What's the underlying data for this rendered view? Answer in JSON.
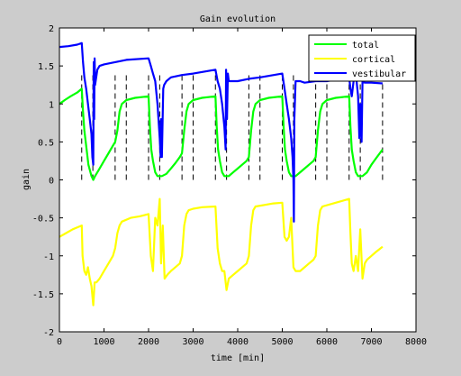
{
  "chart_data": {
    "type": "line",
    "title": "Gain evolution",
    "xlabel": "time [min]",
    "ylabel": "gain",
    "xlim": [
      0,
      8000
    ],
    "ylim": [
      -2,
      2
    ],
    "xticks": [
      0,
      1000,
      2000,
      3000,
      4000,
      5000,
      6000,
      7000,
      8000
    ],
    "yticks": [
      -2,
      -1.5,
      -1,
      -0.5,
      0,
      0.5,
      1,
      1.5,
      2
    ],
    "xtick_labels": [
      "0",
      "1000",
      "2000",
      "3000",
      "4000",
      "5000",
      "6000",
      "7000",
      "8000"
    ],
    "ytick_labels": [
      "-2",
      "-1.5",
      "-1",
      "-0.5",
      "0",
      "0.5",
      "1",
      "1.5",
      "2"
    ],
    "grid": false,
    "legend_position": "top-right",
    "vlines": {
      "color": "#000000",
      "style": "dashed",
      "ymin": 0,
      "ymax": 1.4,
      "x": [
        500,
        750,
        1250,
        1500,
        2000,
        2250,
        2750,
        3000,
        3500,
        3750,
        4250,
        4500,
        5000,
        5250,
        5750,
        6000,
        6500,
        6750,
        7250
      ]
    },
    "series": [
      {
        "name": "total",
        "color": "#00ff00",
        "points": [
          [
            0,
            1.0
          ],
          [
            120,
            1.05
          ],
          [
            250,
            1.1
          ],
          [
            400,
            1.15
          ],
          [
            500,
            1.2
          ],
          [
            530,
            0.9
          ],
          [
            560,
            0.65
          ],
          [
            600,
            0.45
          ],
          [
            650,
            0.2
          ],
          [
            720,
            0.05
          ],
          [
            760,
            0.0
          ],
          [
            800,
            0.05
          ],
          [
            900,
            0.15
          ],
          [
            1000,
            0.25
          ],
          [
            1100,
            0.35
          ],
          [
            1200,
            0.45
          ],
          [
            1250,
            0.5
          ],
          [
            1300,
            0.65
          ],
          [
            1350,
            0.9
          ],
          [
            1400,
            1.0
          ],
          [
            1500,
            1.05
          ],
          [
            1700,
            1.08
          ],
          [
            2000,
            1.1
          ],
          [
            2030,
            0.7
          ],
          [
            2060,
            0.4
          ],
          [
            2100,
            0.25
          ],
          [
            2150,
            0.1
          ],
          [
            2200,
            0.05
          ],
          [
            2250,
            0.05
          ],
          [
            2300,
            0.05
          ],
          [
            2400,
            0.08
          ],
          [
            2500,
            0.15
          ],
          [
            2600,
            0.22
          ],
          [
            2700,
            0.3
          ],
          [
            2750,
            0.35
          ],
          [
            2800,
            0.65
          ],
          [
            2850,
            0.9
          ],
          [
            2900,
            1.0
          ],
          [
            3000,
            1.05
          ],
          [
            3200,
            1.08
          ],
          [
            3500,
            1.1
          ],
          [
            3530,
            0.7
          ],
          [
            3560,
            0.4
          ],
          [
            3600,
            0.25
          ],
          [
            3650,
            0.1
          ],
          [
            3700,
            0.05
          ],
          [
            3750,
            0.05
          ],
          [
            3800,
            0.05
          ],
          [
            3900,
            0.1
          ],
          [
            4000,
            0.15
          ],
          [
            4100,
            0.2
          ],
          [
            4200,
            0.25
          ],
          [
            4250,
            0.3
          ],
          [
            4300,
            0.65
          ],
          [
            4350,
            0.9
          ],
          [
            4400,
            1.0
          ],
          [
            4500,
            1.05
          ],
          [
            4700,
            1.08
          ],
          [
            5000,
            1.1
          ],
          [
            5030,
            0.7
          ],
          [
            5060,
            0.4
          ],
          [
            5100,
            0.25
          ],
          [
            5150,
            0.1
          ],
          [
            5200,
            0.05
          ],
          [
            5250,
            0.05
          ],
          [
            5300,
            0.05
          ],
          [
            5400,
            0.1
          ],
          [
            5500,
            0.15
          ],
          [
            5600,
            0.2
          ],
          [
            5700,
            0.25
          ],
          [
            5750,
            0.3
          ],
          [
            5800,
            0.65
          ],
          [
            5850,
            0.9
          ],
          [
            5900,
            1.0
          ],
          [
            6000,
            1.05
          ],
          [
            6200,
            1.08
          ],
          [
            6500,
            1.1
          ],
          [
            6530,
            0.7
          ],
          [
            6560,
            0.4
          ],
          [
            6600,
            0.25
          ],
          [
            6650,
            0.1
          ],
          [
            6700,
            0.05
          ],
          [
            6750,
            0.05
          ],
          [
            6800,
            0.05
          ],
          [
            6900,
            0.1
          ],
          [
            7000,
            0.2
          ],
          [
            7100,
            0.28
          ],
          [
            7250,
            0.4
          ]
        ]
      },
      {
        "name": "cortical",
        "color": "#ffff00",
        "points": [
          [
            0,
            -0.75
          ],
          [
            150,
            -0.7
          ],
          [
            300,
            -0.65
          ],
          [
            500,
            -0.6
          ],
          [
            520,
            -1.0
          ],
          [
            560,
            -1.2
          ],
          [
            600,
            -1.25
          ],
          [
            640,
            -1.15
          ],
          [
            680,
            -1.3
          ],
          [
            720,
            -1.4
          ],
          [
            760,
            -1.65
          ],
          [
            790,
            -1.35
          ],
          [
            830,
            -1.35
          ],
          [
            900,
            -1.3
          ],
          [
            1000,
            -1.2
          ],
          [
            1100,
            -1.1
          ],
          [
            1200,
            -1.0
          ],
          [
            1250,
            -0.9
          ],
          [
            1300,
            -0.7
          ],
          [
            1350,
            -0.6
          ],
          [
            1400,
            -0.55
          ],
          [
            1600,
            -0.5
          ],
          [
            1800,
            -0.48
          ],
          [
            2000,
            -0.45
          ],
          [
            2050,
            -1.0
          ],
          [
            2100,
            -1.2
          ],
          [
            2150,
            -0.5
          ],
          [
            2200,
            -0.6
          ],
          [
            2250,
            -0.25
          ],
          [
            2280,
            -1.1
          ],
          [
            2320,
            -0.6
          ],
          [
            2360,
            -1.3
          ],
          [
            2420,
            -1.25
          ],
          [
            2500,
            -1.2
          ],
          [
            2600,
            -1.15
          ],
          [
            2700,
            -1.1
          ],
          [
            2750,
            -1.0
          ],
          [
            2800,
            -0.6
          ],
          [
            2850,
            -0.45
          ],
          [
            2900,
            -0.4
          ],
          [
            3000,
            -0.38
          ],
          [
            3200,
            -0.36
          ],
          [
            3500,
            -0.35
          ],
          [
            3550,
            -0.9
          ],
          [
            3600,
            -1.1
          ],
          [
            3650,
            -1.2
          ],
          [
            3700,
            -1.2
          ],
          [
            3750,
            -1.45
          ],
          [
            3800,
            -1.3
          ],
          [
            3900,
            -1.25
          ],
          [
            4000,
            -1.2
          ],
          [
            4100,
            -1.15
          ],
          [
            4200,
            -1.1
          ],
          [
            4250,
            -1.0
          ],
          [
            4300,
            -0.6
          ],
          [
            4350,
            -0.4
          ],
          [
            4400,
            -0.35
          ],
          [
            4600,
            -0.33
          ],
          [
            4800,
            -0.31
          ],
          [
            5000,
            -0.3
          ],
          [
            5050,
            -0.75
          ],
          [
            5100,
            -0.8
          ],
          [
            5150,
            -0.75
          ],
          [
            5200,
            -0.5
          ],
          [
            5250,
            -1.15
          ],
          [
            5300,
            -1.2
          ],
          [
            5400,
            -1.2
          ],
          [
            5500,
            -1.15
          ],
          [
            5600,
            -1.1
          ],
          [
            5700,
            -1.05
          ],
          [
            5750,
            -1.0
          ],
          [
            5800,
            -0.6
          ],
          [
            5850,
            -0.4
          ],
          [
            5900,
            -0.35
          ],
          [
            6200,
            -0.3
          ],
          [
            6500,
            -0.25
          ],
          [
            6530,
            -0.7
          ],
          [
            6560,
            -1.1
          ],
          [
            6600,
            -1.2
          ],
          [
            6650,
            -1.0
          ],
          [
            6700,
            -1.2
          ],
          [
            6750,
            -0.65
          ],
          [
            6800,
            -1.3
          ],
          [
            6850,
            -1.1
          ],
          [
            6900,
            -1.05
          ],
          [
            7000,
            -1.0
          ],
          [
            7100,
            -0.95
          ],
          [
            7250,
            -0.88
          ]
        ]
      },
      {
        "name": "vestibular",
        "color": "#0000ff",
        "points": [
          [
            0,
            1.75
          ],
          [
            200,
            1.76
          ],
          [
            400,
            1.78
          ],
          [
            500,
            1.8
          ],
          [
            530,
            1.55
          ],
          [
            560,
            1.35
          ],
          [
            600,
            1.2
          ],
          [
            640,
            1.0
          ],
          [
            680,
            0.8
          ],
          [
            720,
            0.6
          ],
          [
            740,
            0.3
          ],
          [
            760,
            0.2
          ],
          [
            770,
            1.55
          ],
          [
            780,
            0.8
          ],
          [
            790,
            1.6
          ],
          [
            800,
            1.25
          ],
          [
            850,
            1.45
          ],
          [
            900,
            1.5
          ],
          [
            1000,
            1.52
          ],
          [
            1250,
            1.55
          ],
          [
            1500,
            1.58
          ],
          [
            2000,
            1.6
          ],
          [
            2050,
            1.5
          ],
          [
            2100,
            1.4
          ],
          [
            2150,
            1.3
          ],
          [
            2200,
            1.0
          ],
          [
            2250,
            0.55
          ],
          [
            2270,
            0.3
          ],
          [
            2280,
            0.8
          ],
          [
            2300,
            0.3
          ],
          [
            2330,
            1.2
          ],
          [
            2350,
            1.25
          ],
          [
            2400,
            1.3
          ],
          [
            2500,
            1.35
          ],
          [
            2750,
            1.38
          ],
          [
            3000,
            1.4
          ],
          [
            3500,
            1.45
          ],
          [
            3550,
            1.3
          ],
          [
            3600,
            1.2
          ],
          [
            3650,
            1.0
          ],
          [
            3700,
            0.7
          ],
          [
            3730,
            0.4
          ],
          [
            3740,
            1.45
          ],
          [
            3760,
            0.8
          ],
          [
            3780,
            1.4
          ],
          [
            3800,
            1.3
          ],
          [
            3900,
            1.3
          ],
          [
            4000,
            1.3
          ],
          [
            4250,
            1.33
          ],
          [
            4500,
            1.35
          ],
          [
            5000,
            1.4
          ],
          [
            5050,
            1.2
          ],
          [
            5100,
            1.0
          ],
          [
            5150,
            0.8
          ],
          [
            5200,
            0.55
          ],
          [
            5230,
            0.3
          ],
          [
            5250,
            0.0
          ],
          [
            5260,
            -0.55
          ],
          [
            5270,
            0.8
          ],
          [
            5300,
            1.3
          ],
          [
            5400,
            1.3
          ],
          [
            5500,
            1.28
          ],
          [
            5750,
            1.3
          ],
          [
            6000,
            1.3
          ],
          [
            6500,
            1.35
          ],
          [
            6530,
            1.2
          ],
          [
            6560,
            1.1
          ],
          [
            6600,
            1.3
          ],
          [
            6650,
            1.4
          ],
          [
            6700,
            1.1
          ],
          [
            6730,
            0.55
          ],
          [
            6750,
            1.0
          ],
          [
            6780,
            0.5
          ],
          [
            6800,
            1.3
          ],
          [
            6850,
            1.28
          ],
          [
            7000,
            1.28
          ],
          [
            7250,
            1.27
          ]
        ]
      }
    ]
  }
}
